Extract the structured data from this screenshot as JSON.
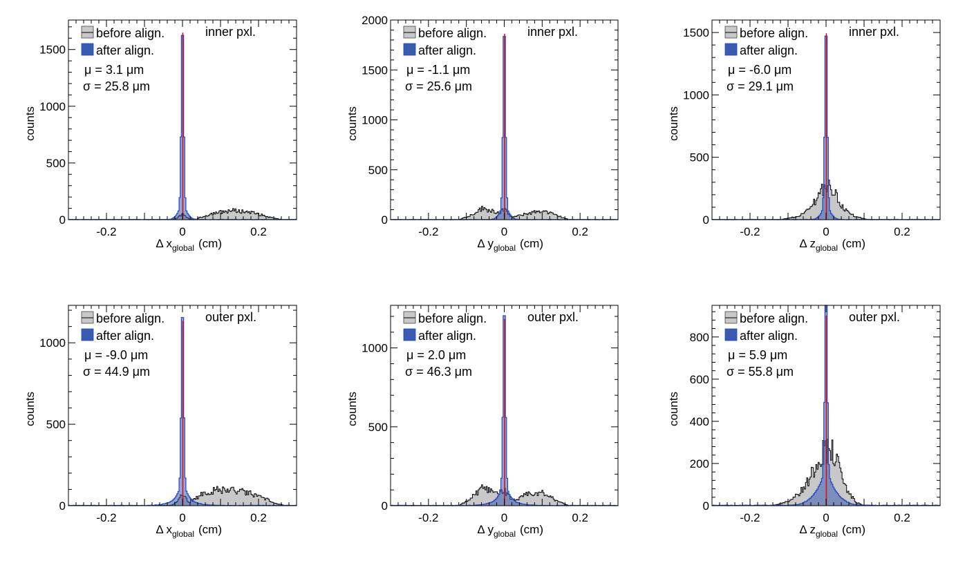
{
  "legend": {
    "before": "before align.",
    "after": "after align."
  },
  "colors": {
    "before_fill": "#c8c8c8",
    "before_line": "#000000",
    "after_fill": "#3a5cb0",
    "after_line": "#1f47c8",
    "peak": "#e01010",
    "frame": "#000000"
  },
  "chart_data": [
    {
      "type": "histogram",
      "region": "inner pxl.",
      "ylabel": "counts",
      "xlabel": {
        "prefix": "Δ x",
        "sub": "global",
        "suffix": "(cm)"
      },
      "mu": "μ = 3.1 μm",
      "sigma": "σ = 25.8 μm",
      "xlim": [
        -0.3,
        0.3
      ],
      "ylim": [
        0,
        1760
      ],
      "xticks": [
        -0.2,
        0,
        0.2
      ],
      "yticks": [
        0,
        500,
        1000,
        1500
      ],
      "peak_value": 1700,
      "before_shape": {
        "core_height": 40,
        "core_width": 0.01,
        "hump": [
          [
            0.04,
            10
          ],
          [
            0.08,
            55
          ],
          [
            0.13,
            80
          ],
          [
            0.18,
            65
          ],
          [
            0.23,
            20
          ],
          [
            0.26,
            0
          ]
        ]
      }
    },
    {
      "type": "histogram",
      "region": "inner pxl.",
      "ylabel": "counts",
      "xlabel": {
        "prefix": "Δ y",
        "sub": "global",
        "suffix": "(cm)"
      },
      "mu": "μ = -1.1 μm",
      "sigma": "σ = 25.6 μm",
      "xlim": [
        -0.3,
        0.3
      ],
      "ylim": [
        0,
        2000
      ],
      "xticks": [
        -0.2,
        0,
        0.2
      ],
      "yticks": [
        0,
        500,
        1000,
        1500,
        2000
      ],
      "peak_value": 1920,
      "before_shape": {
        "core_height": 60,
        "core_width": 0.01,
        "hump": [
          [
            -0.12,
            0
          ],
          [
            -0.09,
            40
          ],
          [
            -0.06,
            110
          ],
          [
            -0.03,
            90
          ],
          [
            -0.01,
            40
          ],
          [
            0.02,
            20
          ],
          [
            0.06,
            60
          ],
          [
            0.1,
            90
          ],
          [
            0.14,
            40
          ],
          [
            0.17,
            0
          ]
        ]
      }
    },
    {
      "type": "histogram",
      "region": "inner pxl.",
      "ylabel": "counts",
      "xlabel": {
        "prefix": "Δ z",
        "sub": "global",
        "suffix": "(cm)"
      },
      "mu": "μ = -6.0 μm",
      "sigma": "σ = 29.1 μm",
      "xlim": [
        -0.3,
        0.3
      ],
      "ylim": [
        0,
        1600
      ],
      "xticks": [
        -0.2,
        0,
        0.2
      ],
      "yticks": [
        0,
        500,
        1000,
        1500
      ],
      "peak_value": 1540,
      "before_shape": {
        "core_height": 150,
        "core_width": 0.025,
        "hump": [
          [
            -0.12,
            0
          ],
          [
            -0.08,
            20
          ],
          [
            -0.04,
            60
          ],
          [
            -0.01,
            110
          ],
          [
            0.02,
            120
          ],
          [
            0.05,
            60
          ],
          [
            0.08,
            20
          ],
          [
            0.11,
            0
          ]
        ]
      }
    },
    {
      "type": "histogram",
      "region": "outer pxl.",
      "ylabel": "counts",
      "xlabel": {
        "prefix": "Δ x",
        "sub": "global",
        "suffix": "(cm)"
      },
      "mu": "μ = -9.0 μm",
      "sigma": "σ = 44.9 μm",
      "xlim": [
        -0.3,
        0.3
      ],
      "ylim": [
        0,
        1230
      ],
      "xticks": [
        -0.2,
        0,
        0.2
      ],
      "yticks": [
        0,
        500,
        1000
      ],
      "peak_value": 1170,
      "before_shape": {
        "core_height": 60,
        "core_width": 0.012,
        "hump": [
          [
            0.02,
            20
          ],
          [
            0.05,
            70
          ],
          [
            0.09,
            95
          ],
          [
            0.13,
            95
          ],
          [
            0.17,
            80
          ],
          [
            0.21,
            50
          ],
          [
            0.25,
            10
          ],
          [
            0.27,
            0
          ]
        ]
      }
    },
    {
      "type": "histogram",
      "region": "outer pxl.",
      "ylabel": "counts",
      "xlabel": {
        "prefix": "Δ y",
        "sub": "global",
        "suffix": "(cm)"
      },
      "mu": "μ = 2.0 μm",
      "sigma": "σ = 46.3 μm",
      "xlim": [
        -0.3,
        0.3
      ],
      "ylim": [
        0,
        1270
      ],
      "xticks": [
        -0.2,
        0,
        0.2
      ],
      "yticks": [
        0,
        500,
        1000
      ],
      "peak_value": 1220,
      "before_shape": {
        "core_height": 60,
        "core_width": 0.012,
        "hump": [
          [
            -0.12,
            0
          ],
          [
            -0.09,
            40
          ],
          [
            -0.06,
            110
          ],
          [
            -0.03,
            100
          ],
          [
            -0.01,
            40
          ],
          [
            0.02,
            20
          ],
          [
            0.06,
            70
          ],
          [
            0.1,
            80
          ],
          [
            0.14,
            30
          ],
          [
            0.17,
            0
          ]
        ]
      }
    },
    {
      "type": "histogram",
      "region": "outer pxl.",
      "ylabel": "counts",
      "xlabel": {
        "prefix": "Δ z",
        "sub": "global",
        "suffix": "(cm)"
      },
      "mu": "μ = 5.9 μm",
      "sigma": "σ = 55.8 μm",
      "xlim": [
        -0.3,
        0.3
      ],
      "ylim": [
        0,
        950
      ],
      "xticks": [
        -0.2,
        0,
        0.2
      ],
      "yticks": [
        0,
        200,
        400,
        600,
        800
      ],
      "peak_value": 930,
      "before_shape": {
        "core_height": 150,
        "core_width": 0.03,
        "hump": [
          [
            -0.14,
            0
          ],
          [
            -0.1,
            20
          ],
          [
            -0.06,
            60
          ],
          [
            -0.02,
            100
          ],
          [
            0.02,
            130
          ],
          [
            0.05,
            60
          ],
          [
            0.08,
            10
          ],
          [
            0.1,
            0
          ]
        ]
      }
    }
  ]
}
